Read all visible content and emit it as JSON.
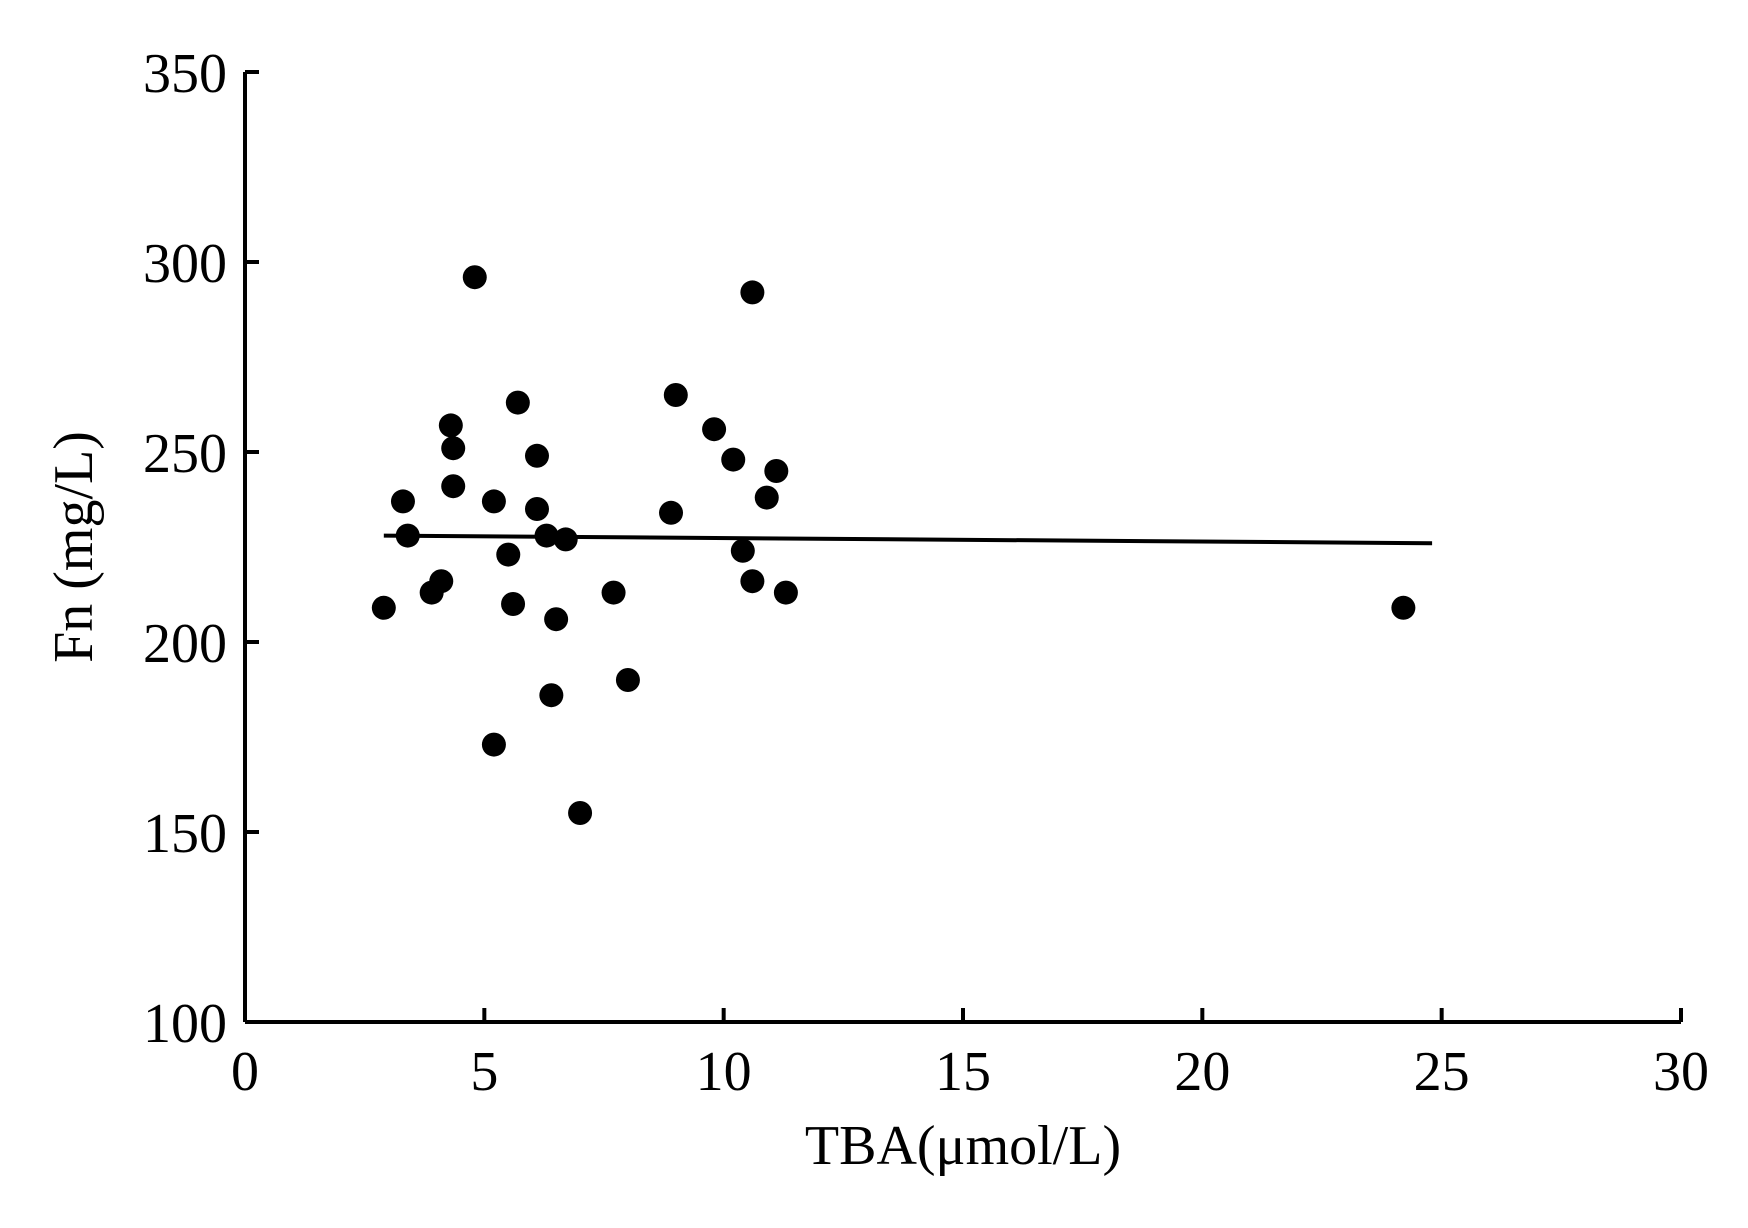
{
  "chart_data": {
    "type": "scatter",
    "title": "",
    "xlabel": "TBA(μmol/L)",
    "ylabel": "Fn (mg/L)",
    "xlim": [
      0,
      30
    ],
    "ylim": [
      100,
      350
    ],
    "xticks": [
      0,
      5,
      10,
      15,
      20,
      25,
      30
    ],
    "yticks": [
      100,
      150,
      200,
      250,
      300,
      350
    ],
    "xtick_labels": [
      "0",
      "5",
      "10",
      "15",
      "20",
      "25",
      "30"
    ],
    "ytick_labels": [
      "100",
      "150",
      "200",
      "250",
      "300",
      "350"
    ],
    "grid": false,
    "legend": "none",
    "point_color": "#000000",
    "series": [
      {
        "points": [
          {
            "x": 2.9,
            "y": 209
          },
          {
            "x": 3.3,
            "y": 237
          },
          {
            "x": 3.4,
            "y": 228
          },
          {
            "x": 3.9,
            "y": 213
          },
          {
            "x": 4.1,
            "y": 216
          },
          {
            "x": 4.3,
            "y": 257
          },
          {
            "x": 4.35,
            "y": 251
          },
          {
            "x": 4.35,
            "y": 241
          },
          {
            "x": 4.8,
            "y": 296
          },
          {
            "x": 5.2,
            "y": 237
          },
          {
            "x": 5.2,
            "y": 173
          },
          {
            "x": 5.5,
            "y": 223
          },
          {
            "x": 5.6,
            "y": 210
          },
          {
            "x": 5.7,
            "y": 263
          },
          {
            "x": 6.1,
            "y": 249
          },
          {
            "x": 6.1,
            "y": 235
          },
          {
            "x": 6.3,
            "y": 228
          },
          {
            "x": 6.4,
            "y": 186
          },
          {
            "x": 6.5,
            "y": 206
          },
          {
            "x": 6.7,
            "y": 227
          },
          {
            "x": 7.0,
            "y": 155
          },
          {
            "x": 7.7,
            "y": 213
          },
          {
            "x": 8.0,
            "y": 190
          },
          {
            "x": 8.9,
            "y": 234
          },
          {
            "x": 9.0,
            "y": 265
          },
          {
            "x": 9.8,
            "y": 256
          },
          {
            "x": 10.2,
            "y": 248
          },
          {
            "x": 10.4,
            "y": 224
          },
          {
            "x": 10.6,
            "y": 292
          },
          {
            "x": 10.6,
            "y": 216
          },
          {
            "x": 10.9,
            "y": 238
          },
          {
            "x": 11.1,
            "y": 245
          },
          {
            "x": 11.3,
            "y": 213
          },
          {
            "x": 24.2,
            "y": 209
          }
        ]
      }
    ],
    "fit_line": {
      "x": [
        2.9,
        24.8
      ],
      "y": [
        228,
        226
      ]
    }
  }
}
